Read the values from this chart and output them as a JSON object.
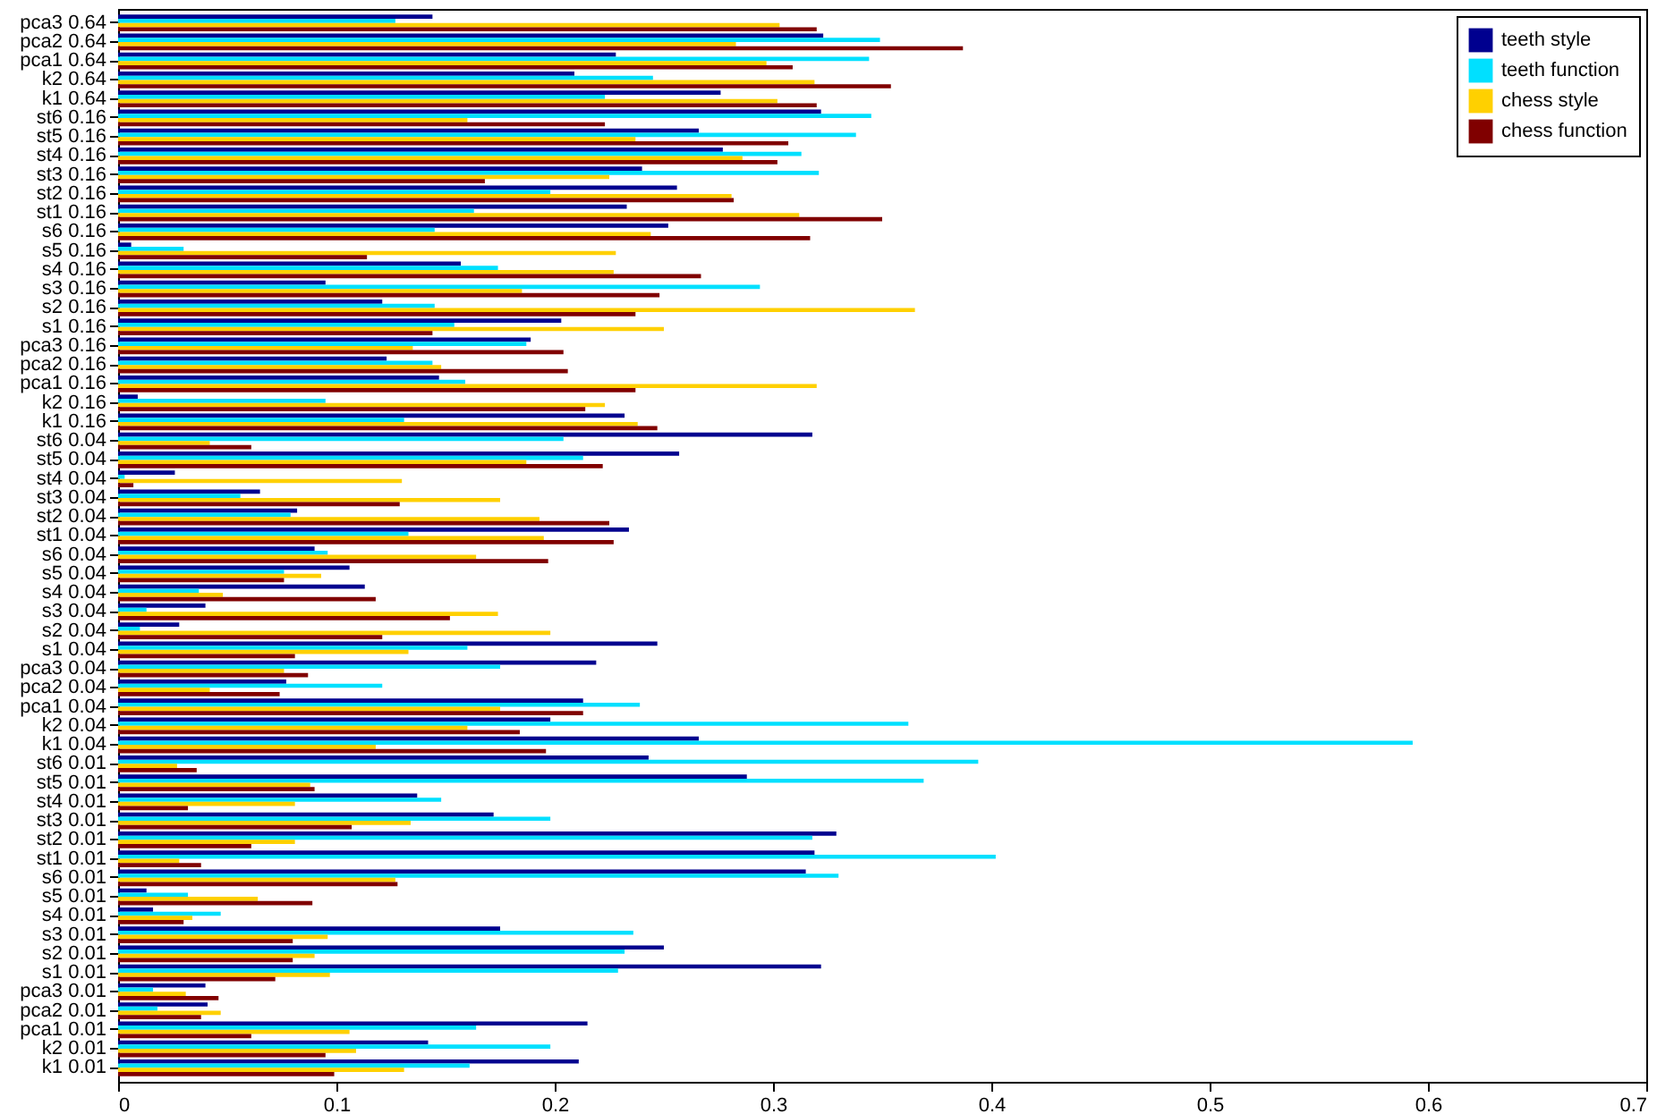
{
  "chart_data": {
    "type": "bar",
    "orientation": "horizontal",
    "categories": [
      "pca3 0.64",
      "pca2 0.64",
      "pca1 0.64",
      "k2 0.64",
      "k1 0.64",
      "st6 0.16",
      "st5 0.16",
      "st4 0.16",
      "st3 0.16",
      "st2 0.16",
      "st1 0.16",
      "s6 0.16",
      "s5 0.16",
      "s4 0.16",
      "s3 0.16",
      "s2 0.16",
      "s1 0.16",
      "pca3 0.16",
      "pca2 0.16",
      "pca1 0.16",
      "k2 0.16",
      "k1 0.16",
      "st6 0.04",
      "st5 0.04",
      "st4 0.04",
      "st3 0.04",
      "st2 0.04",
      "st1 0.04",
      "s6 0.04",
      "s5 0.04",
      "s4 0.04",
      "s3 0.04",
      "s2 0.04",
      "s1 0.04",
      "pca3 0.04",
      "pca2 0.04",
      "pca1 0.04",
      "k2 0.04",
      "k1 0.04",
      "st6 0.01",
      "st5 0.01",
      "st4 0.01",
      "st3 0.01",
      "st2 0.01",
      "st1 0.01",
      "s6 0.01",
      "s5 0.01",
      "s4 0.01",
      "s3 0.01",
      "s2 0.01",
      "s1 0.01",
      "pca3 0.01",
      "pca2 0.01",
      "pca1 0.01",
      "k2 0.01",
      "k1 0.01"
    ],
    "series": [
      {
        "name": "teeth style",
        "color": "#00008f",
        "values": [
          0.144,
          0.323,
          0.228,
          0.209,
          0.276,
          0.322,
          0.266,
          0.277,
          0.24,
          0.256,
          0.233,
          0.252,
          0.006,
          0.157,
          0.095,
          0.121,
          0.203,
          0.189,
          0.123,
          0.147,
          0.009,
          0.232,
          0.318,
          0.257,
          0.026,
          0.065,
          0.082,
          0.234,
          0.09,
          0.106,
          0.113,
          0.04,
          0.028,
          0.247,
          0.219,
          0.077,
          0.213,
          0.198,
          0.266,
          0.243,
          0.288,
          0.137,
          0.172,
          0.329,
          0.319,
          0.315,
          0.013,
          0.016,
          0.175,
          0.25,
          0.322,
          0.04,
          0.041,
          0.215,
          0.142,
          0.211
        ]
      },
      {
        "name": "teeth function",
        "color": "#00e0ff",
        "values": [
          0.127,
          0.349,
          0.344,
          0.245,
          0.223,
          0.345,
          0.338,
          0.313,
          0.321,
          0.198,
          0.163,
          0.145,
          0.03,
          0.174,
          0.294,
          0.145,
          0.154,
          0.187,
          0.144,
          0.159,
          0.095,
          0.131,
          0.204,
          0.213,
          0.003,
          0.056,
          0.079,
          0.133,
          0.096,
          0.076,
          0.037,
          0.013,
          0.01,
          0.16,
          0.175,
          0.121,
          0.239,
          0.362,
          0.593,
          0.394,
          0.369,
          0.148,
          0.198,
          0.318,
          0.402,
          0.33,
          0.032,
          0.047,
          0.236,
          0.232,
          0.229,
          0.016,
          0.018,
          0.164,
          0.198,
          0.161
        ]
      },
      {
        "name": "chess style",
        "color": "#ffd000",
        "values": [
          0.303,
          0.283,
          0.297,
          0.319,
          0.302,
          0.16,
          0.237,
          0.286,
          0.225,
          0.281,
          0.312,
          0.244,
          0.228,
          0.227,
          0.185,
          0.365,
          0.25,
          0.135,
          0.148,
          0.32,
          0.223,
          0.238,
          0.042,
          0.187,
          0.13,
          0.175,
          0.193,
          0.195,
          0.164,
          0.093,
          0.048,
          0.174,
          0.198,
          0.133,
          0.076,
          0.042,
          0.175,
          0.16,
          0.118,
          0.027,
          0.088,
          0.081,
          0.134,
          0.081,
          0.028,
          0.127,
          0.064,
          0.034,
          0.096,
          0.09,
          0.097,
          0.031,
          0.047,
          0.106,
          0.109,
          0.131
        ]
      },
      {
        "name": "chess function",
        "color": "#800000",
        "values": [
          0.32,
          0.387,
          0.309,
          0.354,
          0.32,
          0.223,
          0.307,
          0.302,
          0.168,
          0.282,
          0.35,
          0.317,
          0.114,
          0.267,
          0.248,
          0.237,
          0.144,
          0.204,
          0.206,
          0.237,
          0.214,
          0.247,
          0.061,
          0.222,
          0.007,
          0.129,
          0.225,
          0.227,
          0.197,
          0.076,
          0.118,
          0.152,
          0.121,
          0.081,
          0.087,
          0.074,
          0.213,
          0.184,
          0.196,
          0.036,
          0.09,
          0.032,
          0.107,
          0.061,
          0.038,
          0.128,
          0.089,
          0.03,
          0.08,
          0.08,
          0.072,
          0.046,
          0.038,
          0.061,
          0.095,
          0.099
        ]
      }
    ],
    "xlim": [
      0,
      0.7
    ],
    "xticks": [
      0,
      0.1,
      0.2,
      0.3,
      0.4,
      0.5,
      0.6,
      0.7
    ],
    "legend": "top right",
    "grid": false
  }
}
